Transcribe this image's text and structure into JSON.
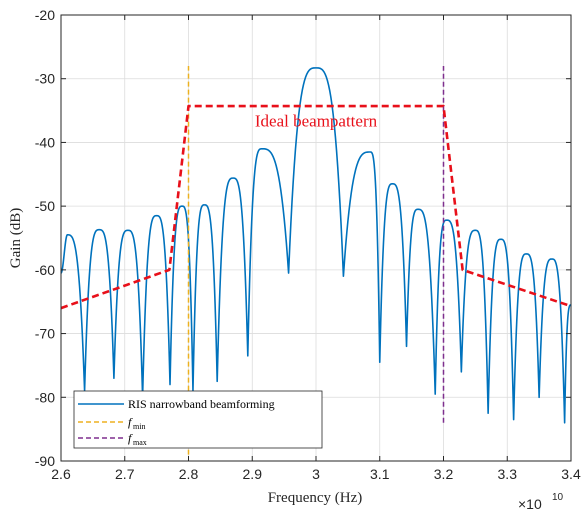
{
  "chart_data": {
    "type": "line",
    "title": "",
    "xlabel": "Frequency (Hz)",
    "ylabel": "Gain (dB)",
    "x_exponent_label": "×10",
    "x_exponent_power": "10",
    "xlim": [
      26000000000.0,
      34000000000.0
    ],
    "ylim": [
      -90,
      -20
    ],
    "x_ticks": [
      26000000000.0,
      27000000000.0,
      28000000000.0,
      29000000000.0,
      30000000000.0,
      31000000000.0,
      32000000000.0,
      33000000000.0,
      34000000000.0
    ],
    "x_tick_labels": [
      "2.6",
      "2.7",
      "2.8",
      "2.9",
      "3",
      "3.1",
      "3.2",
      "3.3",
      "3.4"
    ],
    "y_ticks": [
      -90,
      -80,
      -70,
      -60,
      -50,
      -40,
      -30,
      -20
    ],
    "y_tick_labels": [
      "-90",
      "-80",
      "-70",
      "-60",
      "-50",
      "-40",
      "-30",
      "-20"
    ],
    "grid": true,
    "legend_position": "bottom-left",
    "annotation": {
      "text": "Ideal beampattern",
      "x": 30000000000.0,
      "y": -37.5,
      "color": "#e8101a"
    },
    "series": [
      {
        "name": "RIS narrowband beamforming",
        "color": "#0072bd",
        "style": "solid",
        "main_lobe": {
          "center": 30000000000.0,
          "peak": -28.3
        },
        "sidelobes": [
          {
            "x": 26100000000.0,
            "y": -54.5
          },
          {
            "x": 26600000000.0,
            "y": -53.7
          },
          {
            "x": 27050000000.0,
            "y": -53.8
          },
          {
            "x": 27500000000.0,
            "y": -51.5
          },
          {
            "x": 27900000000.0,
            "y": -50.0
          },
          {
            "x": 28250000000.0,
            "y": -49.8
          },
          {
            "x": 28700000000.0,
            "y": -45.6
          },
          {
            "x": 29150000000.0,
            "y": -41.0
          },
          {
            "x": 30850000000.0,
            "y": -41.5
          },
          {
            "x": 31200000000.0,
            "y": -46.5
          },
          {
            "x": 31600000000.0,
            "y": -50.5
          },
          {
            "x": 32050000000.0,
            "y": -52.2
          },
          {
            "x": 32500000000.0,
            "y": -53.8
          },
          {
            "x": 32900000000.0,
            "y": -55.2
          },
          {
            "x": 33300000000.0,
            "y": -57.5
          },
          {
            "x": 33700000000.0,
            "y": -58.3
          }
        ],
        "nulls": [
          {
            "x": 26370000000.0,
            "y": -79
          },
          {
            "x": 26830000000.0,
            "y": -77
          },
          {
            "x": 27280000000.0,
            "y": -80
          },
          {
            "x": 27710000000.0,
            "y": -78
          },
          {
            "x": 28070000000.0,
            "y": -79
          },
          {
            "x": 28450000000.0,
            "y": -77.5
          },
          {
            "x": 28930000000.0,
            "y": -73.5
          },
          {
            "x": 29570000000.0,
            "y": -60.5
          },
          {
            "x": 30430000000.0,
            "y": -61.0
          },
          {
            "x": 31000000000.0,
            "y": -74.5
          },
          {
            "x": 31420000000.0,
            "y": -72.0
          },
          {
            "x": 31870000000.0,
            "y": -79.5
          },
          {
            "x": 32280000000.0,
            "y": -76.0
          },
          {
            "x": 32700000000.0,
            "y": -82.5
          },
          {
            "x": 33100000000.0,
            "y": -83.5
          },
          {
            "x": 33500000000.0,
            "y": -80.0
          },
          {
            "x": 33900000000.0,
            "y": -84.0
          }
        ],
        "edges": {
          "left": -60.5,
          "right": -65.5
        }
      },
      {
        "name": "Ideal beampattern",
        "color": "#e8101a",
        "style": "dashed",
        "points": [
          {
            "x": 26000000000.0,
            "y": -66
          },
          {
            "x": 27700000000.0,
            "y": -60
          },
          {
            "x": 28000000000.0,
            "y": -34.3
          },
          {
            "x": 32000000000.0,
            "y": -34.3
          },
          {
            "x": 32300000000.0,
            "y": -60
          },
          {
            "x": 34000000000.0,
            "y": -65.7
          }
        ]
      },
      {
        "name": "f",
        "subscript": "min",
        "color": "#edb120",
        "style": "dashed",
        "x": 28000000000.0,
        "y_range": [
          -89,
          -28
        ]
      },
      {
        "name": "f",
        "subscript": "max",
        "color": "#7e2f8e",
        "style": "dashed",
        "x": 32000000000.0,
        "y_range": [
          -84,
          -28
        ]
      }
    ]
  }
}
